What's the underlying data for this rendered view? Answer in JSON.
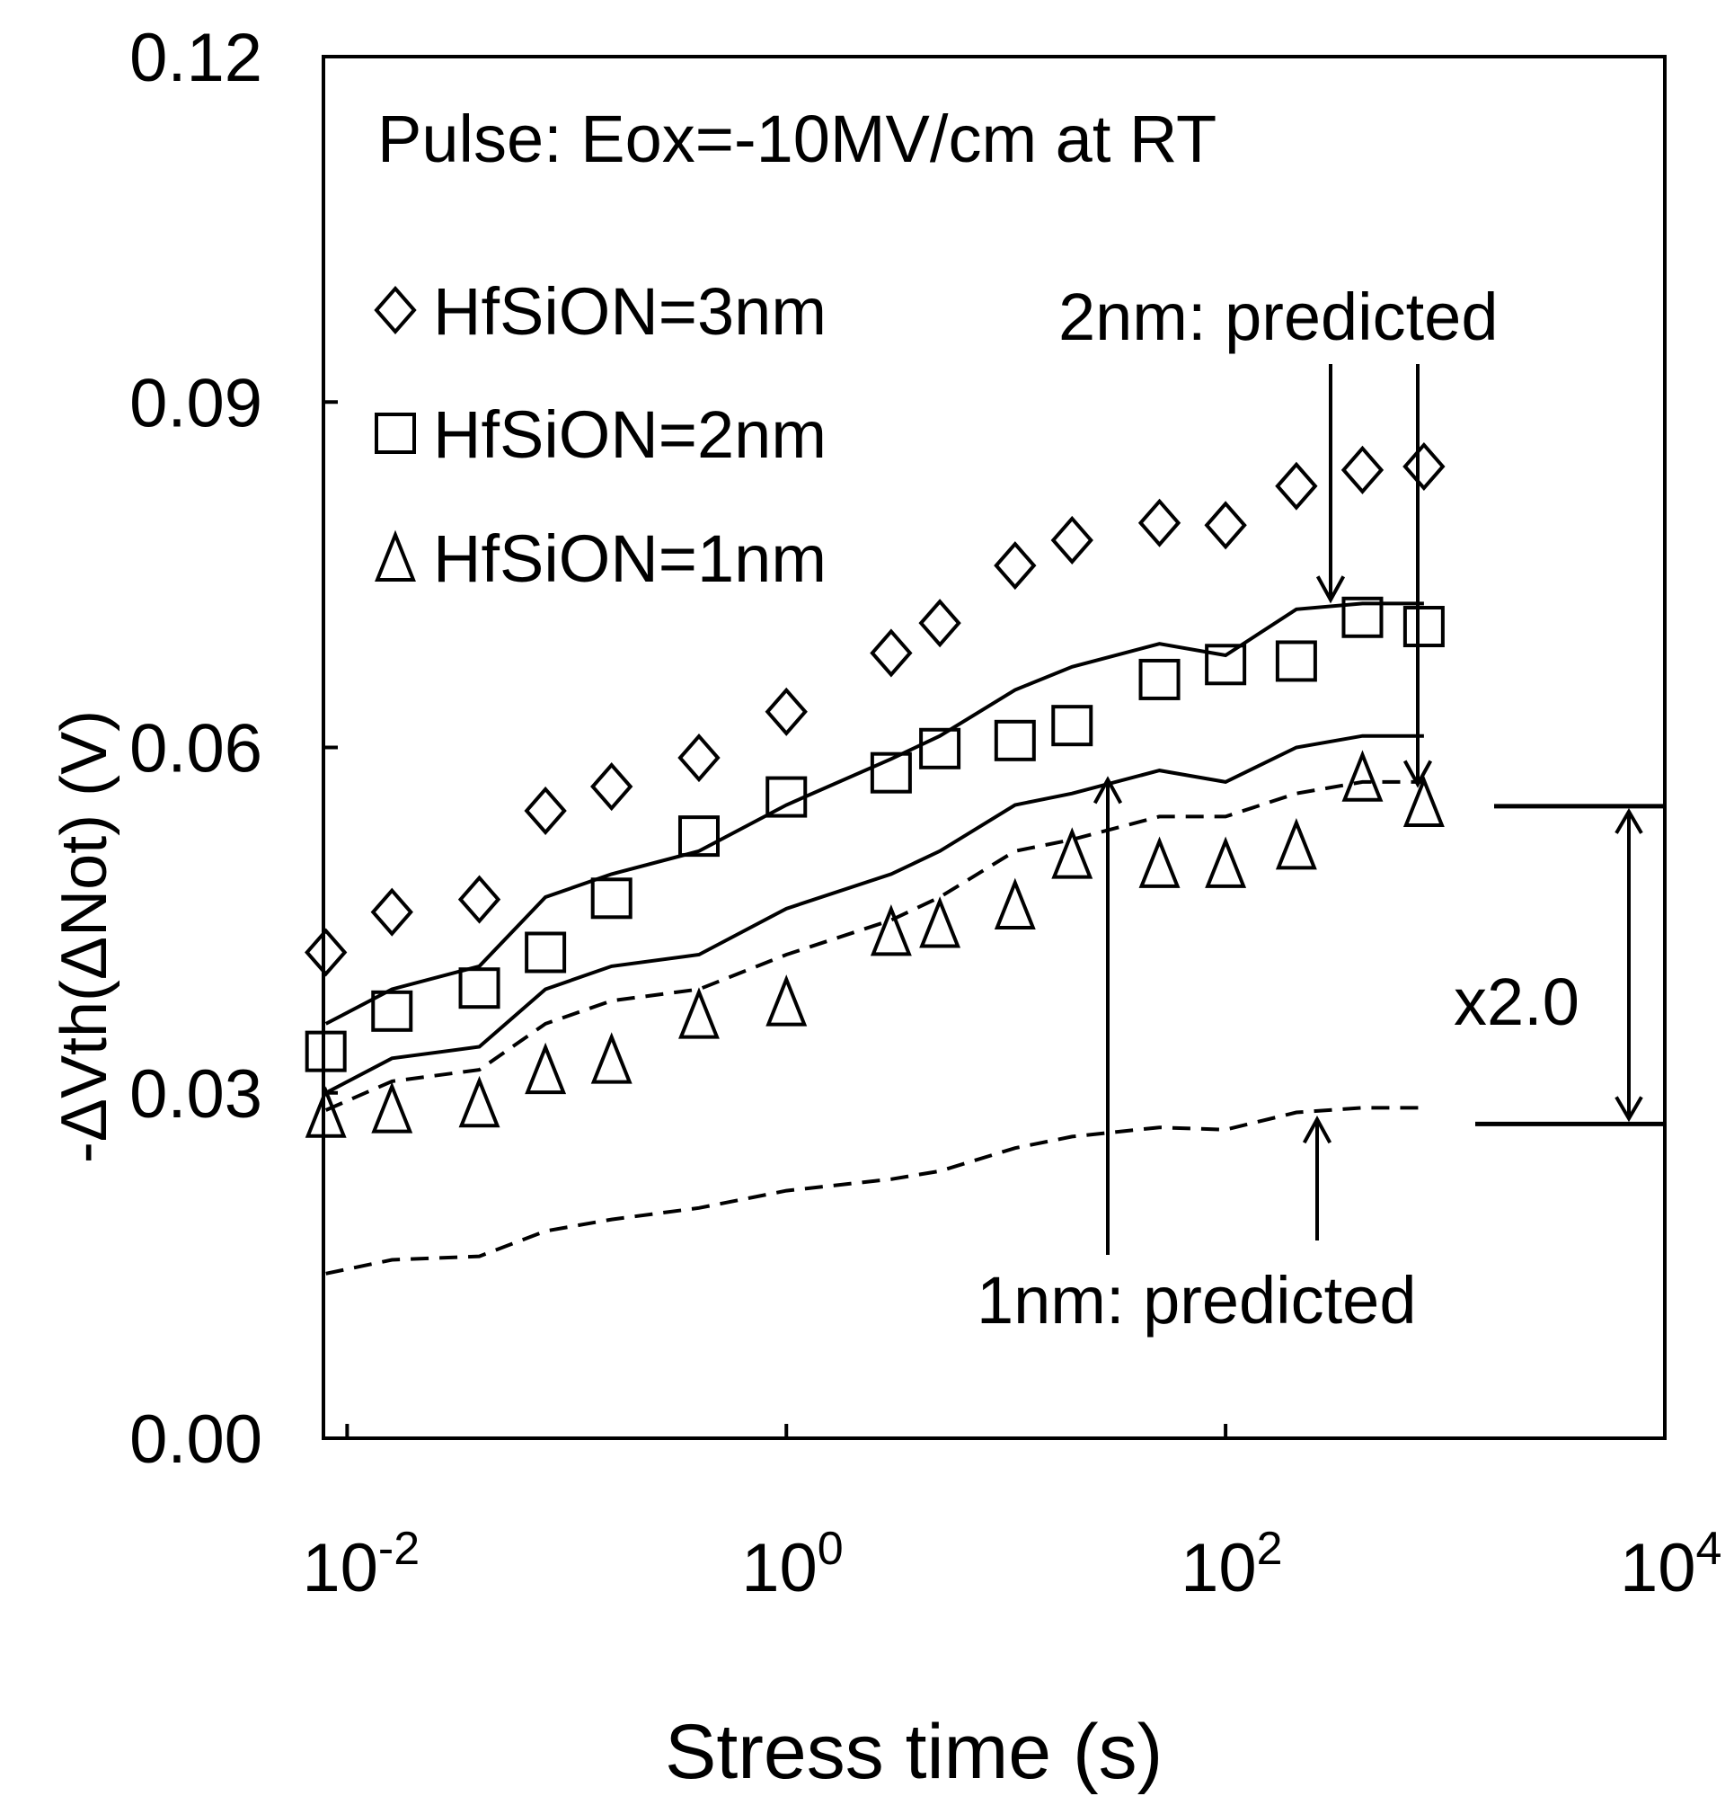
{
  "chart_data": {
    "type": "scatter",
    "title": "Pulse: Eox=-10MV/cm at RT",
    "xlabel": "Stress time (s)",
    "ylabel": "-ΔVth(ΔNot) (V)",
    "xscale": "log",
    "xlim": [
      0.0078,
      10000
    ],
    "ylim": [
      0,
      0.12
    ],
    "ytick_labels": [
      "0.00",
      "0.03",
      "0.06",
      "0.09",
      "0.12"
    ],
    "ytick_values": [
      0,
      0.03,
      0.06,
      0.09,
      0.12
    ],
    "xtick_values": [
      0.01,
      1,
      100,
      10000
    ],
    "xtick_labels": [
      {
        "base": "10",
        "exp": "-2"
      },
      {
        "base": "10",
        "exp": "0"
      },
      {
        "base": "10",
        "exp": "2"
      },
      {
        "base": "10",
        "exp": "4"
      }
    ],
    "legend_position": "top-left",
    "series": [
      {
        "name": "HfSiON=3nm",
        "marker": "diamond",
        "x": [
          0.008,
          0.016,
          0.04,
          0.08,
          0.16,
          0.4,
          1,
          3,
          5,
          11,
          20,
          50,
          100,
          210,
          420,
          800
        ],
        "y": [
          0.0422,
          0.0457,
          0.0468,
          0.0545,
          0.0566,
          0.0591,
          0.0631,
          0.0682,
          0.0708,
          0.0758,
          0.078,
          0.0795,
          0.0793,
          0.0827,
          0.0841,
          0.0844
        ]
      },
      {
        "name": "HfSiON=2nm",
        "marker": "square",
        "x": [
          0.008,
          0.016,
          0.04,
          0.08,
          0.16,
          0.4,
          1,
          3,
          5,
          11,
          20,
          50,
          100,
          210,
          420,
          800
        ],
        "y": [
          0.0336,
          0.0371,
          0.0391,
          0.0422,
          0.0469,
          0.0523,
          0.0557,
          0.0578,
          0.0599,
          0.0606,
          0.0619,
          0.0659,
          0.0672,
          0.0675,
          0.0713,
          0.0705
        ]
      },
      {
        "name": "HfSiON=1nm",
        "marker": "triangle",
        "x": [
          0.008,
          0.016,
          0.04,
          0.08,
          0.16,
          0.4,
          1,
          3,
          5,
          11,
          20,
          50,
          100,
          210,
          420,
          800
        ],
        "y": [
          0.0282,
          0.0286,
          0.0291,
          0.032,
          0.0329,
          0.0368,
          0.0379,
          0.044,
          0.0447,
          0.0463,
          0.0507,
          0.0499,
          0.0499,
          0.0515,
          0.0574,
          0.0552
        ]
      }
    ],
    "lines": [
      {
        "name": "2nm predicted (upper)",
        "style": "solid",
        "x": [
          0.008,
          0.016,
          0.04,
          0.08,
          0.16,
          0.4,
          1,
          3,
          5,
          11,
          20,
          50,
          100,
          210,
          420,
          800
        ],
        "y": [
          0.036,
          0.039,
          0.041,
          0.047,
          0.049,
          0.051,
          0.055,
          0.059,
          0.061,
          0.065,
          0.067,
          0.069,
          0.068,
          0.072,
          0.0725,
          0.0725
        ]
      },
      {
        "name": "2nm predicted (lower)",
        "style": "solid",
        "x": [
          0.008,
          0.016,
          0.04,
          0.08,
          0.16,
          0.4,
          1,
          3,
          5,
          11,
          20,
          50,
          100,
          210,
          420,
          800
        ],
        "y": [
          0.03,
          0.033,
          0.034,
          0.039,
          0.041,
          0.042,
          0.046,
          0.049,
          0.051,
          0.055,
          0.056,
          0.058,
          0.057,
          0.06,
          0.061,
          0.061
        ]
      },
      {
        "name": "1nm predicted (upper)",
        "style": "dashed",
        "x": [
          0.008,
          0.016,
          0.04,
          0.08,
          0.16,
          0.4,
          1,
          3,
          5,
          11,
          20,
          50,
          100,
          210,
          420,
          800
        ],
        "y": [
          0.0285,
          0.031,
          0.032,
          0.036,
          0.038,
          0.039,
          0.042,
          0.045,
          0.047,
          0.051,
          0.052,
          0.054,
          0.054,
          0.056,
          0.057,
          0.057
        ]
      },
      {
        "name": "1nm predicted (lower)",
        "style": "dashed",
        "x": [
          0.008,
          0.016,
          0.04,
          0.08,
          0.16,
          0.4,
          1,
          3,
          5,
          11,
          20,
          50,
          100,
          210,
          420,
          800
        ],
        "y": [
          0.0143,
          0.0155,
          0.0158,
          0.018,
          0.019,
          0.02,
          0.0215,
          0.0225,
          0.0232,
          0.0252,
          0.0262,
          0.027,
          0.0268,
          0.0283,
          0.0287,
          0.0287
        ]
      }
    ],
    "annotations": [
      {
        "text": "2nm: predicted",
        "position": "upper-right"
      },
      {
        "text": "1nm: predicted",
        "position": "lower-right"
      },
      {
        "text": "x2.0",
        "position": "right"
      }
    ],
    "ratio_bracket": {
      "upper": 0.0549,
      "lower": 0.0273
    }
  }
}
